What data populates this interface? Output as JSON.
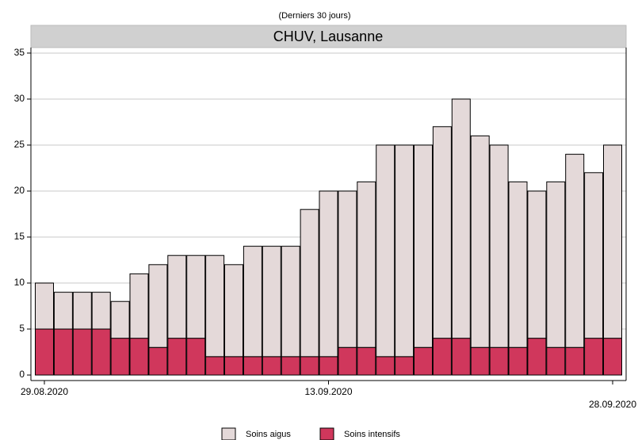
{
  "chart_data": {
    "type": "stacked_bar",
    "subtitle": "(Derniers 30 jours)",
    "title": "CHUV, Lausanne",
    "categories": [
      "29.08.2020",
      null,
      null,
      null,
      null,
      null,
      null,
      null,
      null,
      null,
      null,
      null,
      null,
      null,
      null,
      "13.09.2020",
      null,
      null,
      null,
      null,
      null,
      null,
      null,
      null,
      null,
      null,
      null,
      null,
      null,
      null,
      "28.09.2020"
    ],
    "series": [
      {
        "name": "Soins intensifs",
        "color": "#d0375c",
        "values": [
          5,
          5,
          5,
          5,
          4,
          4,
          3,
          4,
          4,
          2,
          2,
          2,
          2,
          2,
          2,
          2,
          3,
          3,
          2,
          2,
          3,
          4,
          4,
          3,
          3,
          3,
          4,
          3,
          3,
          4,
          4
        ]
      },
      {
        "name": "Soins aigus",
        "color": "#e4d9d9",
        "values": [
          5,
          4,
          4,
          4,
          4,
          7,
          9,
          9,
          9,
          11,
          10,
          12,
          12,
          12,
          16,
          18,
          17,
          18,
          23,
          23,
          22,
          23,
          26,
          23,
          22,
          18,
          16,
          18,
          21,
          18,
          21
        ]
      }
    ],
    "ylim": [
      -0.6,
      35.6
    ],
    "yticks": [
      0,
      5,
      10,
      15,
      20,
      25,
      30,
      35
    ],
    "grid": true
  }
}
